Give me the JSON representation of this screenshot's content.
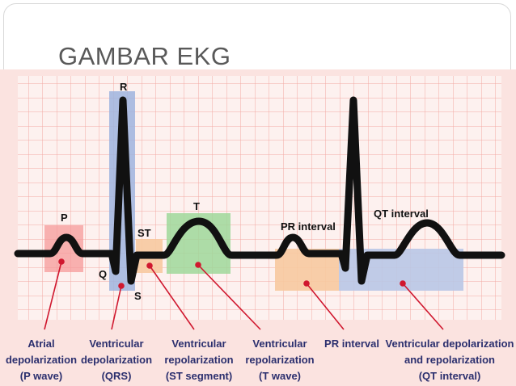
{
  "slide": {
    "title": "GAMBAR EKG"
  },
  "wave_labels": {
    "p": "P",
    "r": "R",
    "q": "Q",
    "s": "S",
    "st": "ST",
    "t": "T",
    "pr_interval": "PR interval",
    "qt_interval": "QT interval"
  },
  "captions": [
    {
      "lines": [
        "Atrial",
        "depolarization",
        "(P wave)"
      ]
    },
    {
      "lines": [
        "Ventricular",
        "depolarization",
        "(QRS)"
      ]
    },
    {
      "lines": [
        "Ventricular",
        "repolarization",
        "(ST segment)"
      ]
    },
    {
      "lines": [
        "Ventricular",
        "repolarization",
        "(T wave)"
      ]
    },
    {
      "lines": [
        "PR interval"
      ]
    },
    {
      "lines": [
        "Ventricular depolarization",
        "and repolarization",
        "(QT interval)"
      ]
    }
  ],
  "colors": {
    "grid_background": "#fbe3e0",
    "grid_line": "#f2a9a3",
    "p_box": "#f59a9a",
    "qrs_box": "#9fb4de",
    "st_box": "#f7c9a0",
    "t_box": "#9fd89a",
    "pr_box": "#f7c9a0",
    "qt_box": "#b9c6e6",
    "trace": "#111111",
    "pointer": "#d0182f",
    "caption_text": "#2b2f6e"
  }
}
